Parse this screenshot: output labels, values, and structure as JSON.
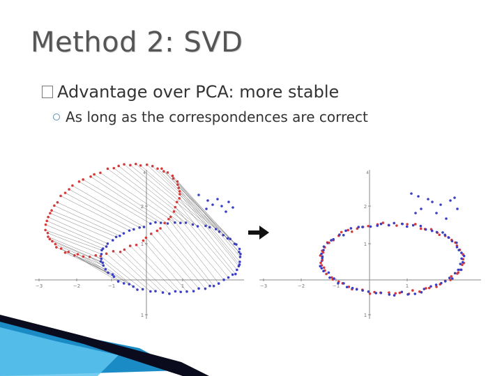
{
  "slide": {
    "title": "Method 2: SVD",
    "bullet_main": "Advantage over PCA: more stable",
    "bullet_sub": "As long as the correspondences are correct"
  },
  "plots": {
    "ticks_x": [
      "−3",
      "−2",
      "−1",
      "1"
    ],
    "ticks_y": [
      "2",
      "1",
      "1"
    ],
    "top_tick": "4",
    "series_colors": {
      "red": "#d43b3b",
      "blue": "#3a3fc4",
      "lines": "#555555"
    }
  },
  "decor": {
    "swoosh_colors": [
      "#1a8bc4",
      "#5ec4ee",
      "#0b0b1e"
    ]
  }
}
